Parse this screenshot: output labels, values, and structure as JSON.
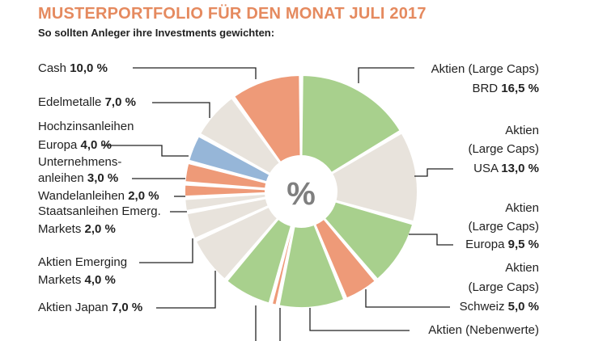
{
  "title": "MUSTERPORTFOLIO FÜR DEN MONAT JULI 2017",
  "subtitle": "So sollten Anleger ihre Investments gewichten:",
  "colors": {
    "title": "#e58a5f",
    "green": "#a8d08d",
    "beige": "#e8e3dc",
    "salmon": "#ee9a78",
    "blue": "#96b6d8",
    "line": "#222222",
    "center": "#7f7f7f"
  },
  "chart_data": {
    "type": "pie",
    "center_label": "%",
    "unit": "%",
    "slices": [
      {
        "key": "aktien_large_caps_brd",
        "label": "Aktien (Large Caps) BRD",
        "value": 16.5,
        "color": "green"
      },
      {
        "key": "aktien_large_caps_usa",
        "label": "Aktien (Large Caps) USA",
        "value": 13.0,
        "color": "beige"
      },
      {
        "key": "aktien_large_caps_europa",
        "label": "Aktien (Large Caps) Europa",
        "value": 9.5,
        "color": "green"
      },
      {
        "key": "aktien_large_caps_schweiz",
        "label": "Aktien (Large Caps) Schweiz",
        "value": 5.0,
        "color": "salmon"
      },
      {
        "key": "aktien_nebenwerte",
        "label": "Aktien (Nebenwerte)",
        "value": 9.5,
        "color": "green"
      },
      {
        "key": "slice_small_salmon",
        "label": "",
        "value": 1.0,
        "color": "salmon"
      },
      {
        "key": "slice_green_bottom",
        "label": "",
        "value": 7.0,
        "color": "green"
      },
      {
        "key": "aktien_japan",
        "label": "Aktien Japan",
        "value": 7.0,
        "color": "beige"
      },
      {
        "key": "aktien_emerging_markets",
        "label": "Aktien Emerging Markets",
        "value": 4.0,
        "color": "beige"
      },
      {
        "key": "staatsanleihen_emerg_markets",
        "label": "Staatsanleihen Emerg. Markets",
        "value": 2.0,
        "color": "beige"
      },
      {
        "key": "wandelanleihen",
        "label": "Wandelanleihen",
        "value": 2.0,
        "color": "salmon"
      },
      {
        "key": "unternehmensanleihen",
        "label": "Unternehmens-anleihen",
        "value": 3.0,
        "color": "salmon"
      },
      {
        "key": "hochzinsanleihen_europa",
        "label": "Hochzinsanleihen Europa",
        "value": 4.0,
        "color": "blue"
      },
      {
        "key": "edelmetalle",
        "label": "Edelmetalle",
        "value": 7.0,
        "color": "beige"
      },
      {
        "key": "cash",
        "label": "Cash",
        "value": 10.0,
        "color": "salmon"
      }
    ]
  },
  "labels": {
    "cash": {
      "name": "Cash",
      "value": "10,0 %"
    },
    "edelmetalle": {
      "name": "Edelmetalle",
      "value": "7,0 %"
    },
    "hochzins": {
      "line1": "Hochzinsanleihen",
      "name": "Europa",
      "value": "4,0 %"
    },
    "unternehmens": {
      "line1": "Unternehmens-",
      "name": "anleihen",
      "value": "3,0 %"
    },
    "wandel": {
      "name": "Wandelanleihen",
      "value": "2,0 %"
    },
    "staats": {
      "line1": "Staatsanleihen Emerg.",
      "name": "Markets",
      "value": "2,0 %"
    },
    "emerging": {
      "line1": "Aktien Emerging",
      "name": "Markets",
      "value": "4,0 %"
    },
    "japan": {
      "name": "Aktien Japan",
      "value": "7,0 %"
    },
    "brd": {
      "line1": "Aktien (Large Caps)",
      "name": "BRD",
      "value": "16,5 %"
    },
    "usa": {
      "line1": "Aktien",
      "line2": "(Large Caps)",
      "name": "USA",
      "value": "13,0 %"
    },
    "europa": {
      "line1": "Aktien",
      "line2": "(Large Caps)",
      "name": "Europa",
      "value": "9,5 %"
    },
    "schweiz": {
      "line1": "Aktien",
      "line2": "(Large Caps)",
      "name": "Schweiz",
      "value": "5,0 %"
    },
    "nebenwerte": {
      "line1": "Aktien (Nebenwerte)"
    }
  }
}
